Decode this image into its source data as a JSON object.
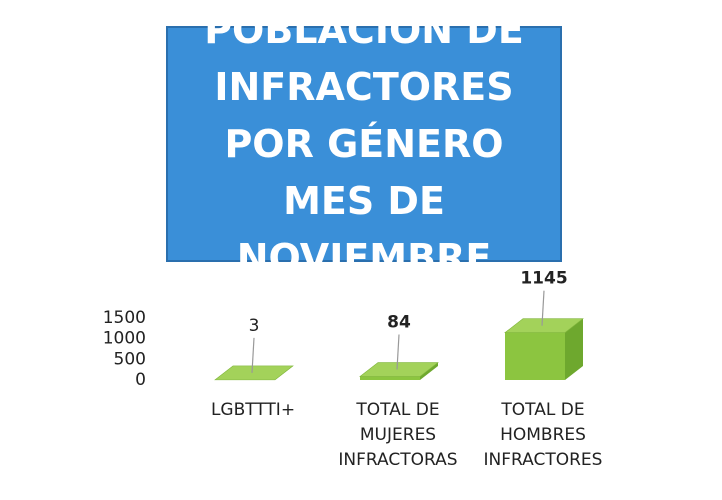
{
  "chart_data": {
    "type": "bar3d",
    "title": "POBLACIÓN DE INFRACTORES POR GÉNERO MES DE NOVIEMBRE",
    "categories": [
      "LGBTTTI+",
      "TOTAL DE MUJERES INFRACTORAS",
      "TOTAL DE HOMBRES INFRACTORES"
    ],
    "values": [
      3,
      84,
      1145
    ],
    "color": "#8cc540",
    "ylim": [
      0,
      1500
    ],
    "yticks": [
      0,
      500,
      1000,
      1500
    ],
    "grid": false
  }
}
